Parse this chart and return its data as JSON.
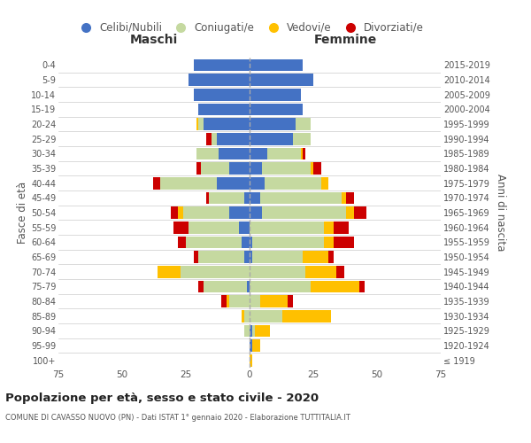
{
  "age_groups": [
    "100+",
    "95-99",
    "90-94",
    "85-89",
    "80-84",
    "75-79",
    "70-74",
    "65-69",
    "60-64",
    "55-59",
    "50-54",
    "45-49",
    "40-44",
    "35-39",
    "30-34",
    "25-29",
    "20-24",
    "15-19",
    "10-14",
    "5-9",
    "0-4"
  ],
  "birth_years": [
    "≤ 1919",
    "1920-1924",
    "1925-1929",
    "1930-1934",
    "1935-1939",
    "1940-1944",
    "1945-1949",
    "1950-1954",
    "1955-1959",
    "1960-1964",
    "1965-1969",
    "1970-1974",
    "1975-1979",
    "1980-1984",
    "1985-1989",
    "1990-1994",
    "1995-1999",
    "2000-2004",
    "2005-2009",
    "2010-2014",
    "2015-2019"
  ],
  "colors": {
    "celibi": "#4472c4",
    "coniugati": "#c5d9a0",
    "vedovi": "#ffc000",
    "divorziati": "#cc0000"
  },
  "maschi": {
    "celibi": [
      0,
      0,
      0,
      0,
      0,
      1,
      0,
      2,
      3,
      4,
      8,
      2,
      13,
      8,
      12,
      13,
      18,
      20,
      22,
      24,
      22
    ],
    "coniugati": [
      0,
      0,
      2,
      2,
      8,
      17,
      27,
      18,
      22,
      20,
      18,
      14,
      22,
      11,
      9,
      2,
      2,
      0,
      0,
      0,
      0
    ],
    "vedovi": [
      0,
      0,
      0,
      1,
      1,
      0,
      9,
      0,
      0,
      0,
      2,
      0,
      0,
      0,
      0,
      0,
      1,
      0,
      0,
      0,
      0
    ],
    "divorziati": [
      0,
      0,
      0,
      0,
      2,
      2,
      0,
      2,
      3,
      6,
      3,
      1,
      3,
      2,
      0,
      2,
      0,
      0,
      0,
      0,
      0
    ]
  },
  "femmine": {
    "celibi": [
      0,
      1,
      1,
      0,
      0,
      0,
      0,
      1,
      1,
      0,
      5,
      4,
      6,
      5,
      7,
      17,
      18,
      21,
      20,
      25,
      21
    ],
    "coniugati": [
      0,
      0,
      1,
      13,
      4,
      24,
      22,
      20,
      28,
      29,
      33,
      32,
      22,
      19,
      13,
      7,
      6,
      0,
      0,
      0,
      0
    ],
    "vedovi": [
      1,
      3,
      6,
      19,
      11,
      19,
      12,
      10,
      4,
      4,
      3,
      2,
      3,
      1,
      1,
      0,
      0,
      0,
      0,
      0,
      0
    ],
    "divorziati": [
      0,
      0,
      0,
      0,
      2,
      2,
      3,
      2,
      8,
      6,
      5,
      3,
      0,
      3,
      1,
      0,
      0,
      0,
      0,
      0,
      0
    ]
  },
  "xlim": 75,
  "title": "Popolazione per età, sesso e stato civile - 2020",
  "subtitle": "COMUNE DI CAVASSO NUOVO (PN) - Dati ISTAT 1° gennaio 2020 - Elaborazione TUTTITALIA.IT",
  "xlabel_left": "Maschi",
  "xlabel_right": "Femmine",
  "ylabel_left": "Fasce di età",
  "ylabel_right": "Anni di nascita",
  "legend_labels": [
    "Celibi/Nubili",
    "Coniugati/e",
    "Vedovi/e",
    "Divorziati/e"
  ],
  "bg_color": "#ffffff",
  "grid_color": "#cccccc",
  "tick_color": "#888888",
  "label_color": "#555555"
}
